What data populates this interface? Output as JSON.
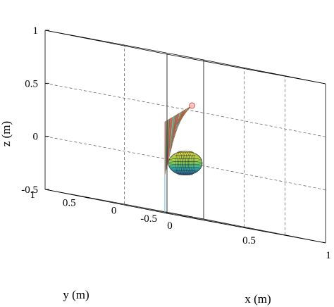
{
  "chart_data": {
    "type": "surface3d",
    "title": "",
    "xlabel": "x (m)",
    "ylabel": "y (m)",
    "zlabel": "z (m)",
    "x_ticks": [
      "0",
      "0.5",
      "1"
    ],
    "y_ticks": [
      "-0.5",
      "0",
      "0.5",
      "1"
    ],
    "z_ticks": [
      "-0.5",
      "0",
      "0.5",
      "1"
    ],
    "xlim": [
      0,
      1
    ],
    "ylim": [
      -0.5,
      1
    ],
    "zlim": [
      -0.5,
      1
    ],
    "grid": true,
    "box": true,
    "objects": [
      {
        "kind": "swept-surface",
        "pivot": [
          0.55,
          0.6,
          -0.15
        ],
        "apex": [
          0.55,
          0.6,
          0.35
        ],
        "tip_end": [
          0.85,
          0.85,
          0.55
        ],
        "strip_count": 40
      },
      {
        "kind": "ellipsoid",
        "center": [
          0.5,
          0.25,
          0.0
        ],
        "radii": [
          0.08,
          0.05,
          0.06
        ]
      },
      {
        "kind": "vertical-line",
        "from_z": -0.5,
        "to_z": -0.15
      }
    ],
    "colors": {
      "ellipsoid_top": "#f6e23a",
      "ellipsoid_bottom": "#1f4f9a",
      "ellipsoid_mid": "#2bb3a8",
      "stem": "#7ec8e3",
      "frame": "#000000",
      "dashed_grid": "#555555"
    }
  }
}
